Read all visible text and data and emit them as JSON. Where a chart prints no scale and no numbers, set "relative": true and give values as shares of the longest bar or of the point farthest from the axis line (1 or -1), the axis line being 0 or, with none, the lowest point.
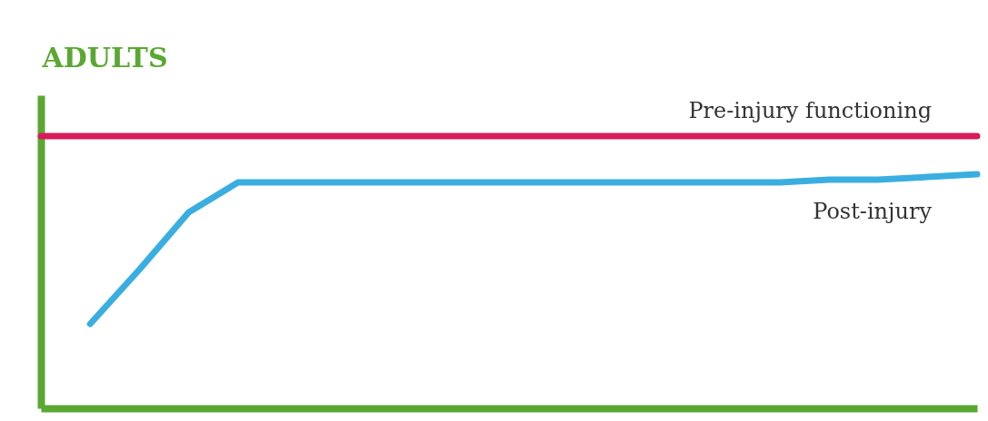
{
  "chart_data": {
    "type": "line",
    "title": "ADULTS",
    "relative": true,
    "categories": [
      null,
      null,
      null,
      null,
      null,
      null,
      null,
      null,
      null,
      null,
      null,
      null,
      null,
      null,
      null,
      null,
      null,
      null,
      null,
      null
    ],
    "series": [
      {
        "name": "Pre-injury functioning",
        "color": "#d81b5a",
        "values": [
          1,
          1,
          1,
          1,
          1,
          1,
          1,
          1,
          1,
          1,
          1,
          1,
          1,
          1,
          1,
          1,
          1,
          1,
          1,
          1
        ]
      },
      {
        "name": "Post-injury",
        "color": "#3aaee0",
        "values": [
          null,
          0.31,
          0.51,
          0.72,
          0.83,
          0.83,
          0.83,
          0.83,
          0.83,
          0.83,
          0.83,
          0.83,
          0.83,
          0.83,
          0.83,
          0.83,
          0.84,
          0.84,
          0.85,
          0.86
        ]
      }
    ],
    "legend": false,
    "grid": false
  }
}
